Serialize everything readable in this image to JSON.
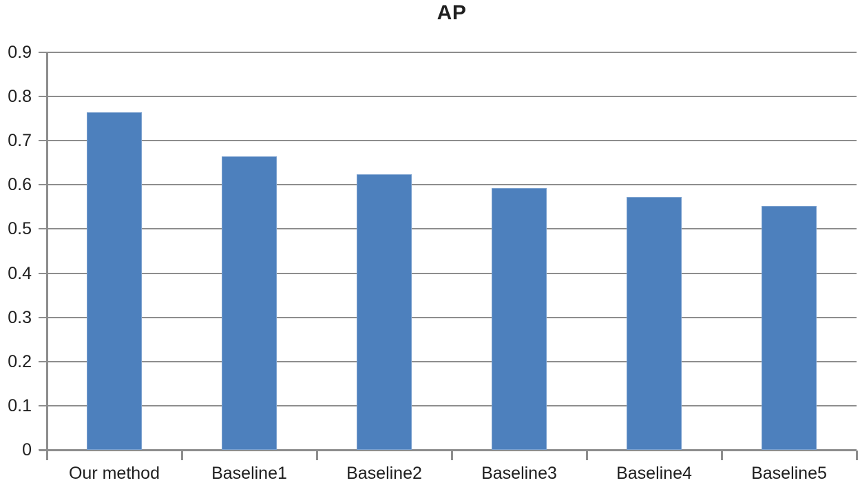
{
  "title": "AP",
  "chart_data": {
    "type": "bar",
    "title": "AP",
    "categories": [
      "Our method",
      "Baseline1",
      "Baseline2",
      "Baseline3",
      "Baseline4",
      "Baseline5"
    ],
    "values": [
      0.765,
      0.665,
      0.624,
      0.593,
      0.573,
      0.552
    ],
    "xlabel": "",
    "ylabel": "",
    "ylim": [
      0,
      0.9
    ],
    "ytick_step": 0.1,
    "ytick_labels": [
      "0",
      "0.1",
      "0.2",
      "0.3",
      "0.4",
      "0.5",
      "0.6",
      "0.7",
      "0.8",
      "0.9"
    ],
    "grid": true,
    "legend_position": "none",
    "bar_color": "#4d80bd",
    "bar_border_color": "#7ba1cf",
    "gridline_color": "#8d8d8d",
    "text_color": "#1f1f1f"
  }
}
